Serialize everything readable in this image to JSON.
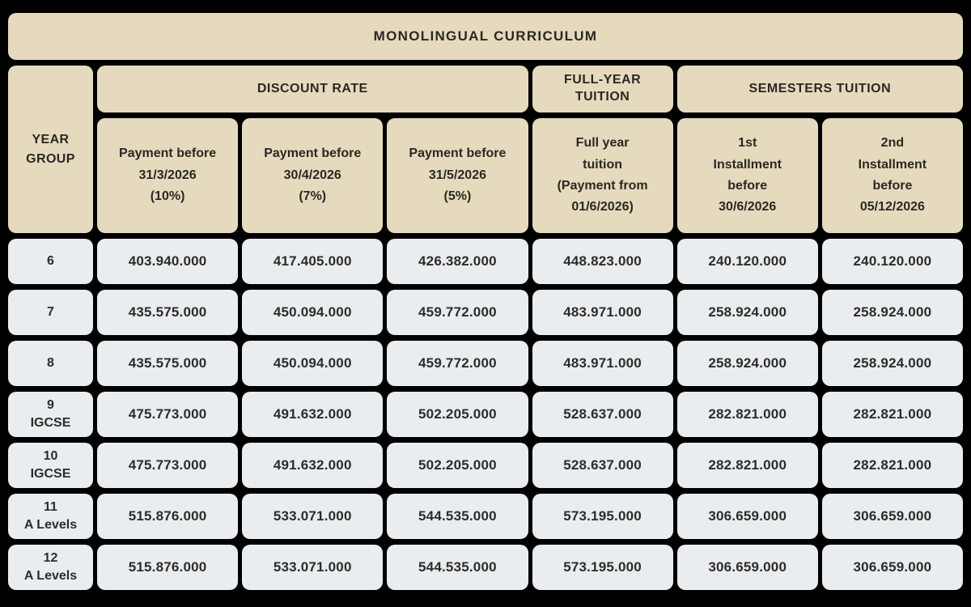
{
  "colors": {
    "background": "#000000",
    "header_cell": "#e5dabd",
    "data_cell": "#e9edf0",
    "text": "#2b2823"
  },
  "title": "MONOLINGUAL CURRICULUM",
  "table": {
    "year_group_header": "YEAR\nGROUP",
    "group_headers": {
      "discount_rate": "DISCOUNT RATE",
      "full_year": "FULL-YEAR\nTUITION",
      "semesters": "SEMESTERS TUITION"
    },
    "column_headers": [
      "Payment before\n31/3/2026\n(10%)",
      "Payment before\n30/4/2026\n(7%)",
      "Payment before\n31/5/2026\n(5%)",
      "Full year\ntuition\n(Payment from\n01/6/2026)",
      "1st\nInstallment\nbefore\n30/6/2026",
      "2nd\nInstallment\nbefore\n05/12/2026"
    ],
    "rows": [
      {
        "year_group": "6",
        "values": [
          "403.940.000",
          "417.405.000",
          "426.382.000",
          "448.823.000",
          "240.120.000",
          "240.120.000"
        ]
      },
      {
        "year_group": "7",
        "values": [
          "435.575.000",
          "450.094.000",
          "459.772.000",
          "483.971.000",
          "258.924.000",
          "258.924.000"
        ]
      },
      {
        "year_group": "8",
        "values": [
          "435.575.000",
          "450.094.000",
          "459.772.000",
          "483.971.000",
          "258.924.000",
          "258.924.000"
        ]
      },
      {
        "year_group": "9\nIGCSE",
        "values": [
          "475.773.000",
          "491.632.000",
          "502.205.000",
          "528.637.000",
          "282.821.000",
          "282.821.000"
        ]
      },
      {
        "year_group": "10\nIGCSE",
        "values": [
          "475.773.000",
          "491.632.000",
          "502.205.000",
          "528.637.000",
          "282.821.000",
          "282.821.000"
        ]
      },
      {
        "year_group": "11\nA Levels",
        "values": [
          "515.876.000",
          "533.071.000",
          "544.535.000",
          "573.195.000",
          "306.659.000",
          "306.659.000"
        ]
      },
      {
        "year_group": "12\nA Levels",
        "values": [
          "515.876.000",
          "533.071.000",
          "544.535.000",
          "573.195.000",
          "306.659.000",
          "306.659.000"
        ]
      }
    ]
  }
}
